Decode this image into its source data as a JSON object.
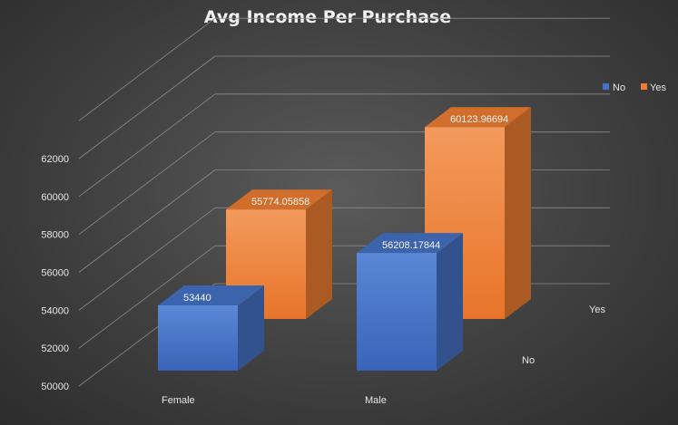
{
  "chart_data": {
    "type": "bar",
    "title": "Avg Income Per Purchase",
    "categories": [
      "Female",
      "Male"
    ],
    "depth_categories": [
      "No",
      "Yes"
    ],
    "series": [
      {
        "name": "No",
        "values": [
          53440,
          56208.17844
        ],
        "color": "#4472c4"
      },
      {
        "name": "Yes",
        "values": [
          55774.05858,
          60123.96694
        ],
        "color": "#ed7d31"
      }
    ],
    "data_labels": [
      [
        "53440",
        "56208.17844"
      ],
      [
        "55774.05858",
        "60123.96694"
      ]
    ],
    "ylim": [
      50000,
      62000
    ],
    "yticks": [
      50000,
      52000,
      54000,
      56000,
      58000,
      60000,
      62000
    ],
    "grid": true,
    "legend_position": "top-right",
    "background_color": "#404040",
    "text_color": "#e6e6e6"
  }
}
